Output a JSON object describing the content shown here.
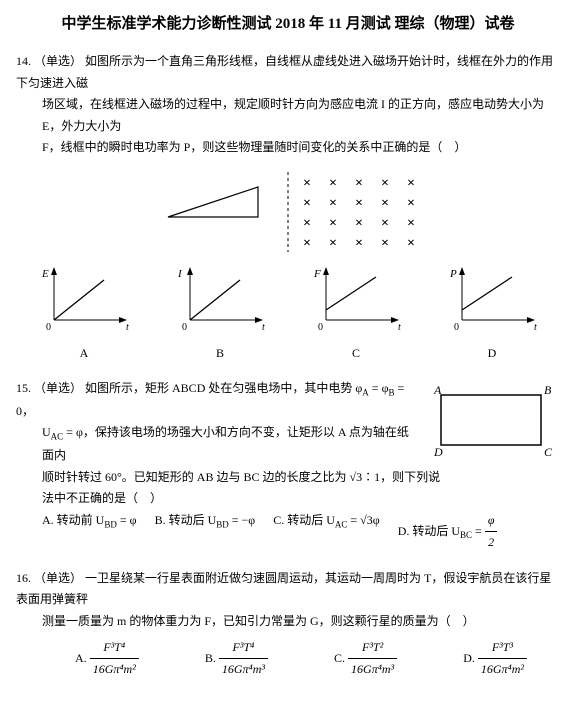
{
  "title": "中学生标准学术能力诊断性测试 2018 年 11 月测试 理综（物理）试卷",
  "q14": {
    "num": "14.",
    "tag": "（单选）",
    "line1": "如图所示为一个直角三角形线框，自线框从虚线处进入磁场开始计时，线框在外力的作用下匀速进入磁",
    "line2": "场区域，在线框进入磁场的过程中，规定顺时针方向为感应电流 I 的正方向，感应电动势大小为 E，外力大小为",
    "line3": "F，线框中的瞬时电功率为 P，则这些物理量随时间变化的关系中正确的是（　）",
    "triangle": {
      "stroke": "#000000"
    },
    "field": {
      "rows": 4,
      "cols": 5,
      "symbol": "×",
      "color": "#000000",
      "divider_color": "#000000"
    },
    "graphs": [
      {
        "ylabel": "E",
        "opt": "A",
        "curve": "linear"
      },
      {
        "ylabel": "I",
        "opt": "B",
        "curve": "linear"
      },
      {
        "ylabel": "F",
        "opt": "C",
        "curve": "linear_offset"
      },
      {
        "ylabel": "P",
        "opt": "D",
        "curve": "linear_offset"
      }
    ],
    "origin_label": "0",
    "xlabel": "t"
  },
  "q15": {
    "num": "15.",
    "tag": "（单选）",
    "l1a": "如图所示，矩形 ABCD 处在匀强电场中，其中电势 φ",
    "l1b": " = φ",
    "l1c": " = 0，",
    "subA": "A",
    "subB": "B",
    "l2a": "U",
    "l2b": " = φ，保持该电场的场强大小和方向不变，让矩形以 A 点为轴在纸面内",
    "subAC": "AC",
    "l3a": "顺时针转过 60°。已知矩形的 AB 边与 BC 边的长度之比为 ",
    "l3b": "∶1，则下列说",
    "sqrt3": "√3",
    "l4": "法中不正确的是（　）",
    "rect": {
      "labels": [
        "A",
        "B",
        "C",
        "D"
      ],
      "stroke": "#000000"
    },
    "options": {
      "A_pre": "A. 转动前 U",
      "A_sub": "BD",
      "A_post": " = φ",
      "B_pre": "B. 转动后 U",
      "B_sub": "BD",
      "B_post": " = −φ",
      "C_pre": "C. 转动后 U",
      "C_sub": "AC",
      "C_post": " = √3φ",
      "D_pre": "D. 转动后 U",
      "D_sub": "BC",
      "D_eq": " = ",
      "D_num": "φ",
      "D_den": "2"
    }
  },
  "q16": {
    "num": "16.",
    "tag": "（单选）",
    "l1": "一卫星绕某一行星表面附近做匀速圆周运动，其运动一周周时为 T，假设宇航员在该行星表面用弹簧秤",
    "l2": "测量一质量为 m 的物体重力为 F，已知引力常量为 G，则这颗行星的质量为（　）",
    "options": [
      {
        "label": "A.",
        "num": "F³T⁴",
        "den": "16Gπ⁴m²"
      },
      {
        "label": "B.",
        "num": "F³T⁴",
        "den": "16Gπ⁴m³"
      },
      {
        "label": "C.",
        "num": "F³T²",
        "den": "16Gπ⁴m³"
      },
      {
        "label": "D.",
        "num": "F³T³",
        "den": "16Gπ⁴m²"
      }
    ]
  }
}
